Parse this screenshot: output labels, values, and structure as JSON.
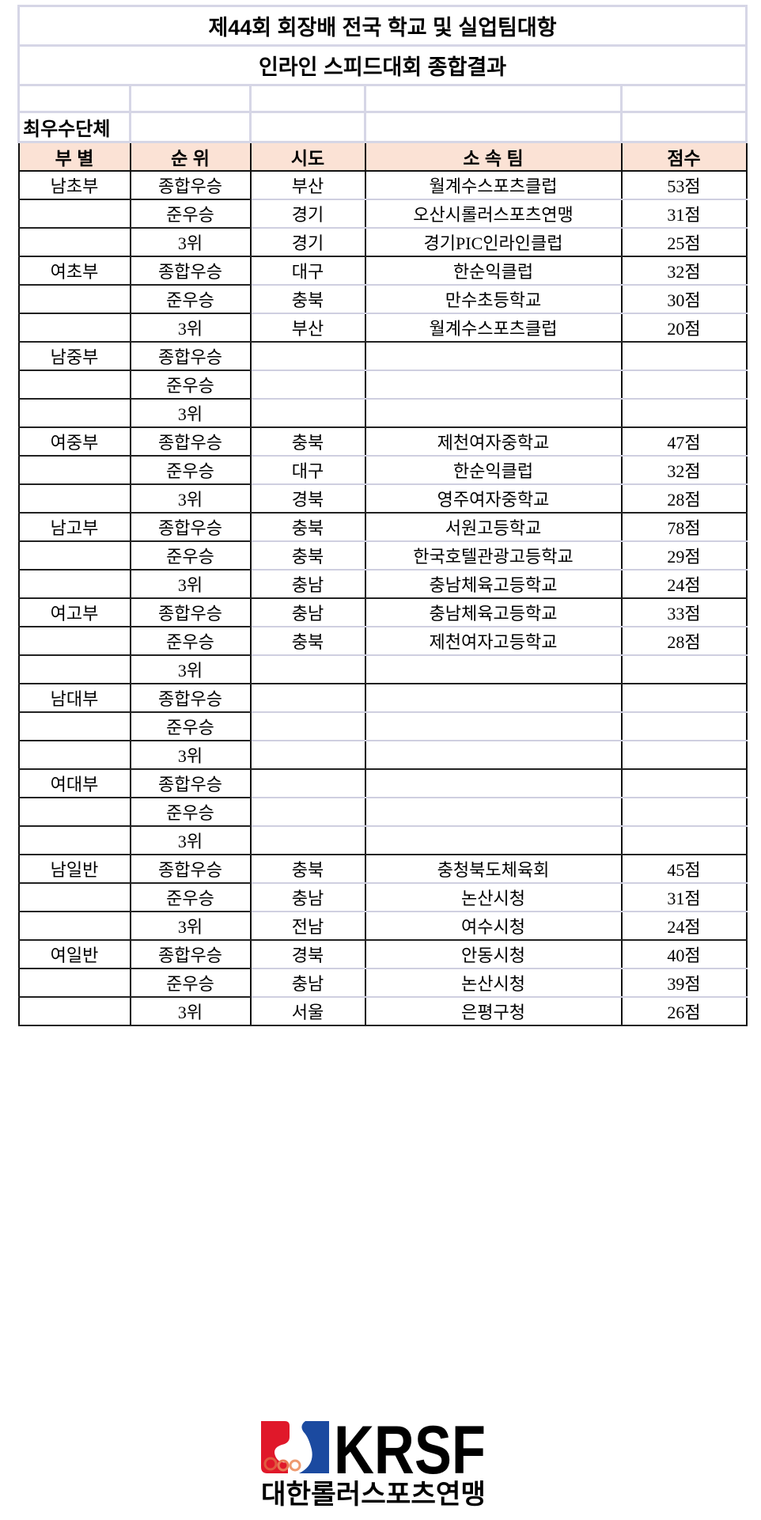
{
  "title": "제44회 회장배 전국 학교 및 실업팀대항",
  "subtitle": "인라인 스피드대회 종합결과",
  "section_label": "최우수단체",
  "columns": [
    "부  별",
    "순 위",
    "시도",
    "소 속 팀",
    "점수"
  ],
  "rows": [
    {
      "division": "남초부",
      "rank": "종합우승",
      "region": "부산",
      "team": "월계수스포츠클럽",
      "score": "53점"
    },
    {
      "division": "",
      "rank": "준우승",
      "region": "경기",
      "team": "오산시롤러스포츠연맹",
      "score": "31점"
    },
    {
      "division": "",
      "rank": "3위",
      "region": "경기",
      "team": "경기PIC인라인클럽",
      "score": "25점"
    },
    {
      "division": "여초부",
      "rank": "종합우승",
      "region": "대구",
      "team": "한순익클럽",
      "score": "32점"
    },
    {
      "division": "",
      "rank": "준우승",
      "region": "충북",
      "team": "만수초등학교",
      "score": "30점"
    },
    {
      "division": "",
      "rank": "3위",
      "region": "부산",
      "team": "월계수스포츠클럽",
      "score": "20점"
    },
    {
      "division": "남중부",
      "rank": "종합우승",
      "region": "",
      "team": "",
      "score": ""
    },
    {
      "division": "",
      "rank": "준우승",
      "region": "",
      "team": "",
      "score": ""
    },
    {
      "division": "",
      "rank": "3위",
      "region": "",
      "team": "",
      "score": ""
    },
    {
      "division": "여중부",
      "rank": "종합우승",
      "region": "충북",
      "team": "제천여자중학교",
      "score": "47점"
    },
    {
      "division": "",
      "rank": "준우승",
      "region": "대구",
      "team": "한순익클럽",
      "score": "32점"
    },
    {
      "division": "",
      "rank": "3위",
      "region": "경북",
      "team": "영주여자중학교",
      "score": "28점"
    },
    {
      "division": "남고부",
      "rank": "종합우승",
      "region": "충북",
      "team": "서원고등학교",
      "score": "78점"
    },
    {
      "division": "",
      "rank": "준우승",
      "region": "충북",
      "team": "한국호텔관광고등학교",
      "score": "29점"
    },
    {
      "division": "",
      "rank": "3위",
      "region": "충남",
      "team": "충남체육고등학교",
      "score": "24점"
    },
    {
      "division": "여고부",
      "rank": "종합우승",
      "region": "충남",
      "team": "충남체육고등학교",
      "score": "33점"
    },
    {
      "division": "",
      "rank": "준우승",
      "region": "충북",
      "team": "제천여자고등학교",
      "score": "28점"
    },
    {
      "division": "",
      "rank": "3위",
      "region": "",
      "team": "",
      "score": ""
    },
    {
      "division": "남대부",
      "rank": "종합우승",
      "region": "",
      "team": "",
      "score": ""
    },
    {
      "division": "",
      "rank": "준우승",
      "region": "",
      "team": "",
      "score": ""
    },
    {
      "division": "",
      "rank": "3위",
      "region": "",
      "team": "",
      "score": ""
    },
    {
      "division": "여대부",
      "rank": "종합우승",
      "region": "",
      "team": "",
      "score": ""
    },
    {
      "division": "",
      "rank": "준우승",
      "region": "",
      "team": "",
      "score": ""
    },
    {
      "division": "",
      "rank": "3위",
      "region": "",
      "team": "",
      "score": ""
    },
    {
      "division": "남일반",
      "rank": "종합우승",
      "region": "충북",
      "team": "충청북도체육회",
      "score": "45점"
    },
    {
      "division": "",
      "rank": "준우승",
      "region": "충남",
      "team": "논산시청",
      "score": "31점"
    },
    {
      "division": "",
      "rank": "3위",
      "region": "전남",
      "team": "여수시청",
      "score": "24점"
    },
    {
      "division": "여일반",
      "rank": "종합우승",
      "region": "경북",
      "team": "안동시청",
      "score": "40점"
    },
    {
      "division": "",
      "rank": "준우승",
      "region": "충남",
      "team": "논산시청",
      "score": "39점"
    },
    {
      "division": "",
      "rank": "3위",
      "region": "서울",
      "team": "은평구청",
      "score": "26점"
    }
  ],
  "logo": {
    "text": "KRSF",
    "caption": "대한롤러스포츠연맹",
    "red": "#e0182a",
    "blue": "#1b4aa0"
  },
  "colors": {
    "header_bg": "#fbe2d5",
    "grid_light": "#d6d6e6"
  }
}
